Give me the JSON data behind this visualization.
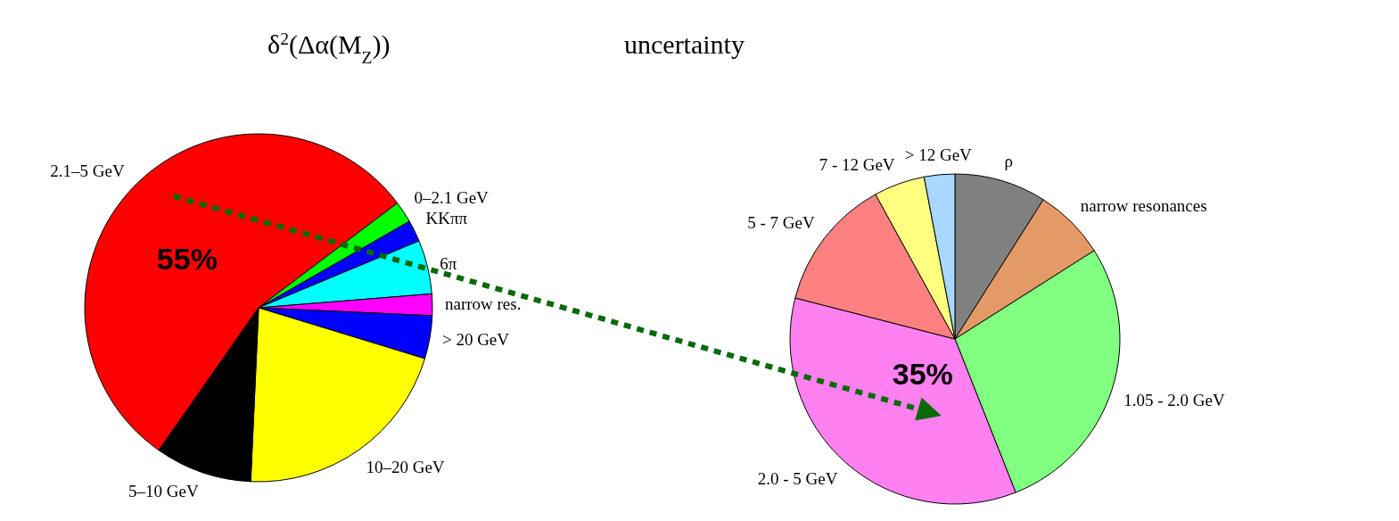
{
  "chart_data": [
    {
      "type": "pie",
      "title": "δ$^{2}$(Δα(M$_{Z}$))",
      "categories": [
        "2.1–5 GeV",
        "0–2.1 GeV",
        "KKππ",
        "6π",
        "narrow res.",
        "> 20 GeV",
        "10–20 GeV",
        "5–10 GeV"
      ],
      "values": [
        55,
        2,
        2,
        5,
        2,
        4,
        21,
        9
      ],
      "colors": [
        "#ff0000",
        "#00ff00",
        "#0000ff",
        "#00ffff",
        "#ff00ff",
        "#0000ff",
        "#ffff00",
        "#000000"
      ],
      "value_labels": [
        "55%",
        null,
        null,
        null,
        null,
        null,
        null,
        null
      ]
    },
    {
      "type": "pie",
      "title": "uncertainty",
      "categories": [
        "ρ",
        "narrow resonances",
        "1.05 - 2.0 GeV",
        "2.0 - 5 GeV",
        "5 - 7 GeV",
        "7 - 12 GeV",
        "> 12 GeV"
      ],
      "values": [
        9,
        7,
        28,
        35,
        13,
        5,
        3
      ],
      "colors": [
        "#808080",
        "#e49a66",
        "#80ff80",
        "#ff80f0",
        "#ff8080",
        "#ffff80",
        "#a8d8ff"
      ],
      "value_labels": [
        null,
        null,
        null,
        "35%",
        null,
        null,
        null
      ]
    }
  ]
}
